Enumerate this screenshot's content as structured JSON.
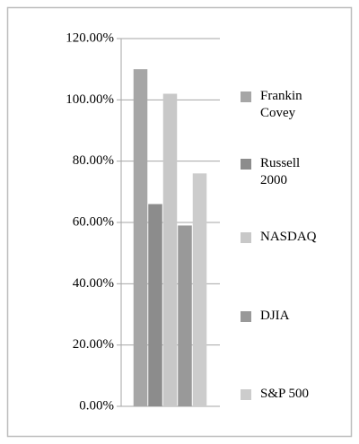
{
  "chart_data": {
    "type": "bar",
    "categories": [
      null
    ],
    "series": [
      {
        "name": "Frankin Covey",
        "color": "#a6a6a6",
        "values": [
          110
        ]
      },
      {
        "name": "Russell 2000",
        "color": "#8c8c8c",
        "values": [
          66
        ]
      },
      {
        "name": "NASDAQ",
        "color": "#c8c8c8",
        "values": [
          102
        ]
      },
      {
        "name": "DJIA",
        "color": "#999999",
        "values": [
          59
        ]
      },
      {
        "name": "S&P 500",
        "color": "#cccccc",
        "values": [
          76
        ]
      }
    ],
    "ylim": [
      0,
      120
    ],
    "yticks": [
      {
        "value": 0,
        "label": "0.00%"
      },
      {
        "value": 20,
        "label": "20.00%"
      },
      {
        "value": 40,
        "label": "40.00%"
      },
      {
        "value": 60,
        "label": "60.00%"
      },
      {
        "value": 80,
        "label": "80.00%"
      },
      {
        "value": 100,
        "label": "100.00%"
      },
      {
        "value": 120,
        "label": "120.00%"
      }
    ],
    "grid": true,
    "legend": "right"
  }
}
